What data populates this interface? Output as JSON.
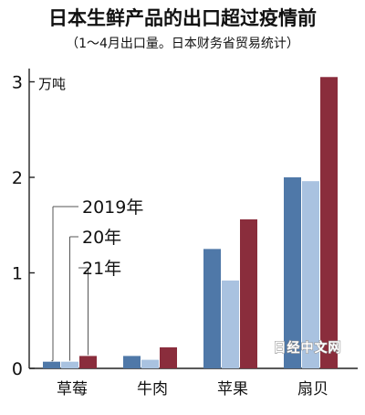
{
  "chart_data": {
    "type": "bar",
    "title": "日本生鲜产品的出口超过疫情前",
    "subtitle": "（1～4月出口量。日本财务省贸易统计）",
    "ylabel": "万吨",
    "xlabel": "",
    "categories": [
      "草莓",
      "牛肉",
      "苹果",
      "扇贝"
    ],
    "series": [
      {
        "name": "2019年",
        "values": [
          0.07,
          0.13,
          1.25,
          2.0
        ],
        "color": "#4f78a8"
      },
      {
        "name": "20年",
        "values": [
          0.07,
          0.09,
          0.92,
          1.96
        ],
        "color": "#a9c2e0"
      },
      {
        "name": "21年",
        "values": [
          0.13,
          0.22,
          1.56,
          3.05
        ],
        "color": "#8a2d3c"
      }
    ],
    "ylim": [
      0,
      3.1
    ],
    "yticks": [
      0,
      1,
      2,
      3
    ],
    "grid": false,
    "legend_placement": "left, leader lines to first category",
    "watermark": "日经中文网"
  }
}
